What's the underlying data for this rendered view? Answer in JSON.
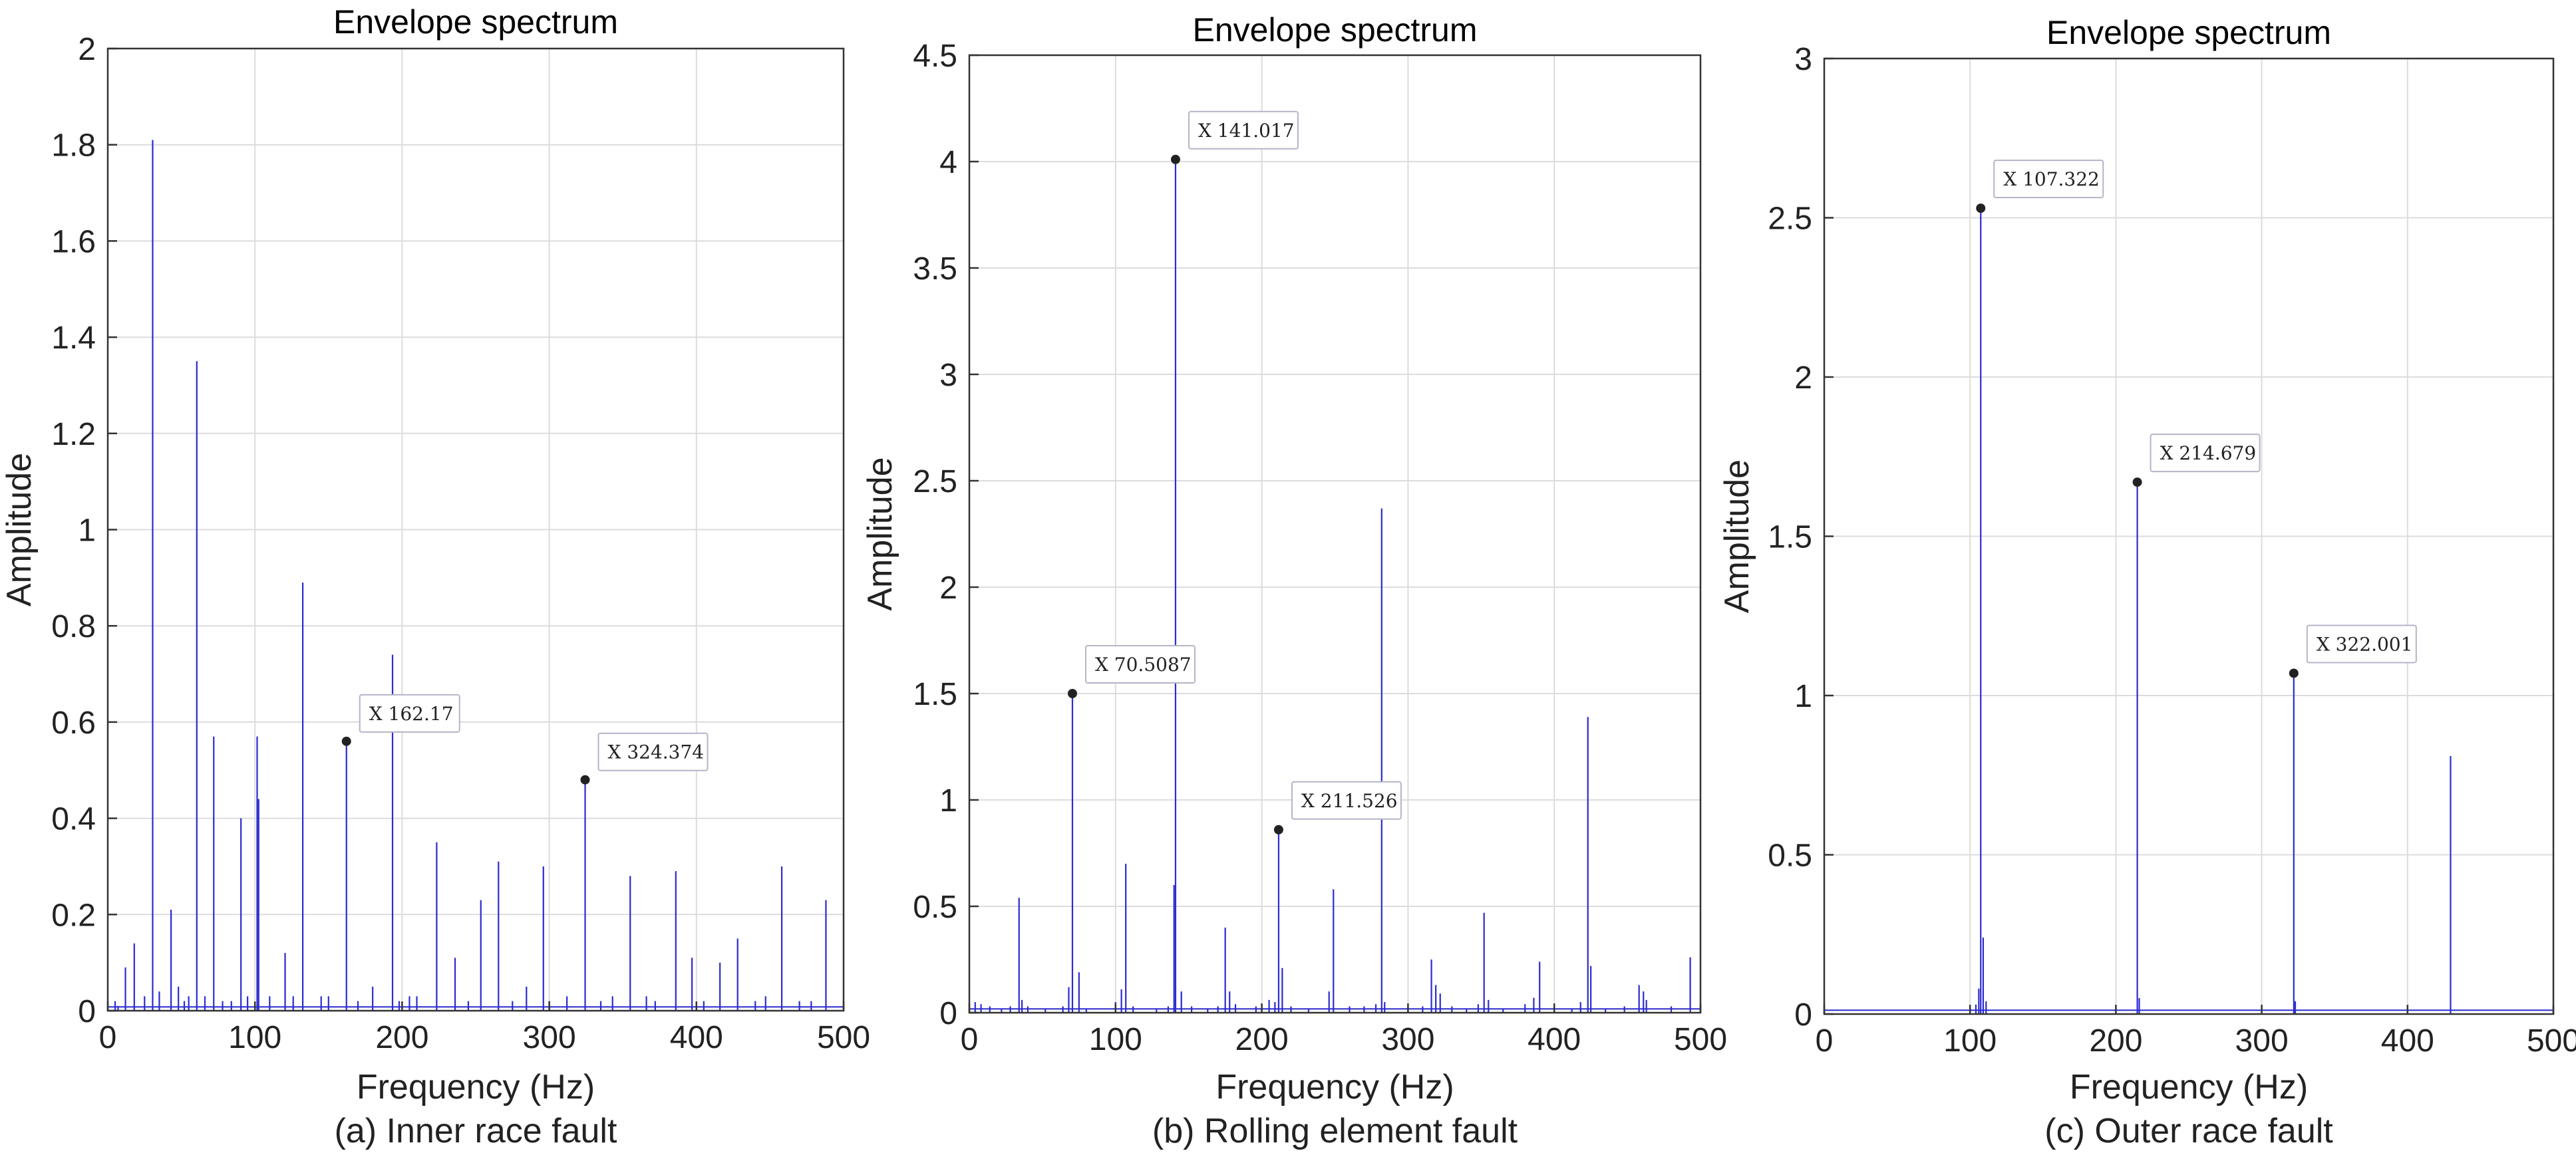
{
  "figure_captions": [
    "(a) Inner race fault",
    "(b) Rolling element fault",
    "(c) Outer race fault"
  ],
  "colors": {
    "line": "#2b2bd0",
    "grid": "#dcdcdc",
    "axis": "#333333",
    "marker": "#222222"
  },
  "chart_data": [
    {
      "type": "line",
      "title": "Envelope spectrum",
      "xlabel": "Frequency (Hz)",
      "ylabel": "Amplitude",
      "caption": "(a) Inner race fault",
      "xlim": [
        0,
        500
      ],
      "ylim": [
        0,
        2
      ],
      "xticks": [
        0,
        100,
        200,
        300,
        400,
        500
      ],
      "xtick_labels": [
        "0",
        "100",
        "200",
        "300",
        "400",
        "500"
      ],
      "yticks": [
        0,
        0.2,
        0.4,
        0.6,
        0.8,
        1,
        1.2,
        1.4,
        1.6,
        1.8,
        2
      ],
      "ytick_labels": [
        "0",
        "0.2",
        "0.4",
        "0.6",
        "0.8",
        "1",
        "1.2",
        "1.4",
        "1.6",
        "1.8",
        "2"
      ],
      "grid": true,
      "peaks": [
        [
          5,
          0.02
        ],
        [
          7,
          0.01
        ],
        [
          12,
          0.09
        ],
        [
          18,
          0.14
        ],
        [
          25,
          0.03
        ],
        [
          30.5,
          1.81
        ],
        [
          35,
          0.04
        ],
        [
          43,
          0.21
        ],
        [
          48,
          0.05
        ],
        [
          52,
          0.02
        ],
        [
          55,
          0.03
        ],
        [
          60.5,
          1.35
        ],
        [
          66,
          0.03
        ],
        [
          72,
          0.57
        ],
        [
          78,
          0.02
        ],
        [
          84,
          0.02
        ],
        [
          90.5,
          0.4
        ],
        [
          95,
          0.03
        ],
        [
          101.5,
          0.57
        ],
        [
          102.5,
          0.44
        ],
        [
          110,
          0.03
        ],
        [
          120.5,
          0.12
        ],
        [
          126,
          0.03
        ],
        [
          132.5,
          0.89
        ],
        [
          145,
          0.03
        ],
        [
          150,
          0.03
        ],
        [
          162.17,
          0.56
        ],
        [
          170,
          0.02
        ],
        [
          180,
          0.05
        ],
        [
          193.5,
          0.74
        ],
        [
          198,
          0.02
        ],
        [
          205,
          0.03
        ],
        [
          210,
          0.03
        ],
        [
          223.5,
          0.35
        ],
        [
          236,
          0.11
        ],
        [
          245,
          0.02
        ],
        [
          253.5,
          0.23
        ],
        [
          265.5,
          0.31
        ],
        [
          275,
          0.02
        ],
        [
          284.5,
          0.05
        ],
        [
          296,
          0.3
        ],
        [
          300,
          0.02
        ],
        [
          312,
          0.03
        ],
        [
          324.374,
          0.48
        ],
        [
          335,
          0.02
        ],
        [
          343,
          0.03
        ],
        [
          355,
          0.28
        ],
        [
          366,
          0.03
        ],
        [
          372,
          0.02
        ],
        [
          386,
          0.29
        ],
        [
          397,
          0.11
        ],
        [
          405,
          0.02
        ],
        [
          416,
          0.1
        ],
        [
          428,
          0.15
        ],
        [
          440,
          0.02
        ],
        [
          447,
          0.03
        ],
        [
          458,
          0.3
        ],
        [
          470,
          0.02
        ],
        [
          478,
          0.02
        ],
        [
          488,
          0.23
        ]
      ],
      "datatips": [
        {
          "x": 162.17,
          "y": 0.56,
          "label": "X 162.17"
        },
        {
          "x": 324.374,
          "y": 0.48,
          "label": "X 324.374"
        }
      ]
    },
    {
      "type": "line",
      "title": "Envelope spectrum",
      "xlabel": "Frequency (Hz)",
      "ylabel": "Amplitude",
      "caption": "(b) Rolling element fault",
      "xlim": [
        0,
        500
      ],
      "ylim": [
        0,
        4.5
      ],
      "xticks": [
        0,
        100,
        200,
        300,
        400,
        500
      ],
      "xtick_labels": [
        "0",
        "100",
        "200",
        "300",
        "400",
        "500"
      ],
      "yticks": [
        0,
        0.5,
        1,
        1.5,
        2,
        2.5,
        3,
        3.5,
        4,
        4.5
      ],
      "ytick_labels": [
        "0",
        "0.5",
        "1",
        "1.5",
        "2",
        "2.5",
        "3",
        "3.5",
        "4",
        "4.5"
      ],
      "grid": true,
      "peaks": [
        [
          4,
          0.05
        ],
        [
          8,
          0.04
        ],
        [
          14,
          0.03
        ],
        [
          22,
          0.02
        ],
        [
          28,
          0.03
        ],
        [
          34,
          0.54
        ],
        [
          36,
          0.06
        ],
        [
          40,
          0.03
        ],
        [
          52,
          0.02
        ],
        [
          64,
          0.03
        ],
        [
          68,
          0.12
        ],
        [
          70.5087,
          1.5
        ],
        [
          75,
          0.19
        ],
        [
          80,
          0.02
        ],
        [
          100,
          0.05
        ],
        [
          104,
          0.11
        ],
        [
          107,
          0.7
        ],
        [
          112,
          0.03
        ],
        [
          128,
          0.02
        ],
        [
          136,
          0.03
        ],
        [
          140,
          0.6
        ],
        [
          141.017,
          4.01
        ],
        [
          145,
          0.1
        ],
        [
          152,
          0.03
        ],
        [
          163,
          0.02
        ],
        [
          170,
          0.03
        ],
        [
          175,
          0.4
        ],
        [
          178,
          0.1
        ],
        [
          182,
          0.04
        ],
        [
          196,
          0.03
        ],
        [
          205,
          0.06
        ],
        [
          209,
          0.05
        ],
        [
          211.526,
          0.86
        ],
        [
          214,
          0.21
        ],
        [
          220,
          0.03
        ],
        [
          232,
          0.02
        ],
        [
          246,
          0.1
        ],
        [
          249,
          0.58
        ],
        [
          260,
          0.03
        ],
        [
          270,
          0.03
        ],
        [
          278,
          0.04
        ],
        [
          282,
          2.37
        ],
        [
          284,
          0.05
        ],
        [
          300,
          0.02
        ],
        [
          310,
          0.03
        ],
        [
          316,
          0.25
        ],
        [
          319,
          0.13
        ],
        [
          322,
          0.09
        ],
        [
          330,
          0.03
        ],
        [
          340,
          0.02
        ],
        [
          348,
          0.04
        ],
        [
          352,
          0.47
        ],
        [
          355,
          0.06
        ],
        [
          365,
          0.02
        ],
        [
          380,
          0.04
        ],
        [
          386,
          0.07
        ],
        [
          390,
          0.24
        ],
        [
          400,
          0.03
        ],
        [
          412,
          0.02
        ],
        [
          418,
          0.05
        ],
        [
          423,
          1.39
        ],
        [
          425,
          0.22
        ],
        [
          435,
          0.02
        ],
        [
          448,
          0.03
        ],
        [
          458,
          0.13
        ],
        [
          461,
          0.1
        ],
        [
          463,
          0.06
        ],
        [
          480,
          0.03
        ],
        [
          493,
          0.26
        ]
      ],
      "datatips": [
        {
          "x": 70.5087,
          "y": 1.5,
          "label": "X 70.5087"
        },
        {
          "x": 141.017,
          "y": 4.01,
          "label": "X 141.017"
        },
        {
          "x": 211.526,
          "y": 0.86,
          "label": "X 211.526"
        }
      ]
    },
    {
      "type": "line",
      "title": "Envelope spectrum",
      "xlabel": "Frequency (Hz)",
      "ylabel": "Amplitude",
      "caption": "(c) Outer race fault",
      "xlim": [
        0,
        500
      ],
      "ylim": [
        0,
        3
      ],
      "xticks": [
        0,
        100,
        200,
        300,
        400,
        500
      ],
      "xtick_labels": [
        "0",
        "100",
        "200",
        "300",
        "400",
        "500"
      ],
      "yticks": [
        0,
        0.5,
        1,
        1.5,
        2,
        2.5,
        3
      ],
      "ytick_labels": [
        "0",
        "0.5",
        "1",
        "1.5",
        "2",
        "2.5",
        "3"
      ],
      "grid": true,
      "peaks": [
        [
          104,
          0.03
        ],
        [
          106,
          0.08
        ],
        [
          107.322,
          2.53
        ],
        [
          109,
          0.24
        ],
        [
          111,
          0.04
        ],
        [
          214.679,
          1.67
        ],
        [
          216,
          0.05
        ],
        [
          322.001,
          1.07
        ],
        [
          323,
          0.04
        ],
        [
          429.5,
          0.81
        ]
      ],
      "datatips": [
        {
          "x": 107.322,
          "y": 2.53,
          "label": "X 107.322"
        },
        {
          "x": 214.679,
          "y": 1.67,
          "label": "X 214.679"
        },
        {
          "x": 322.001,
          "y": 1.07,
          "label": "X 322.001"
        }
      ]
    }
  ]
}
